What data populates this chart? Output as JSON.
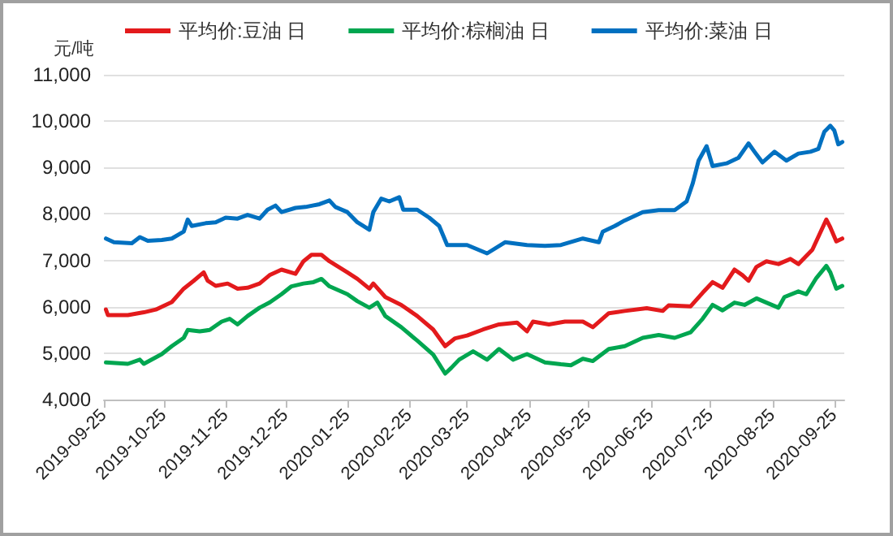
{
  "chart_data": {
    "type": "line",
    "ylabel": "元/吨",
    "legend": "top",
    "grid": "y",
    "marker": "none",
    "line_style": "solid",
    "xlim": [
      "2019-09-25",
      "2020-09-30"
    ],
    "xticks": [
      "2019-09-25",
      "2019-10-25",
      "2019-11-25",
      "2019-12-25",
      "2020-01-25",
      "2020-02-25",
      "2020-03-25",
      "2020-04-25",
      "2020-05-25",
      "2020-06-25",
      "2020-07-25",
      "2020-08-25",
      "2020-09-25"
    ],
    "ylim": [
      4000,
      11000
    ],
    "yticks": [
      {
        "value": 4000,
        "label": "4,000"
      },
      {
        "value": 5000,
        "label": "5,000"
      },
      {
        "value": 6000,
        "label": "6,000"
      },
      {
        "value": 7000,
        "label": "7,000"
      },
      {
        "value": 8000,
        "label": "8,000"
      },
      {
        "value": 9000,
        "label": "9,000"
      },
      {
        "value": 10000,
        "label": "10,000"
      },
      {
        "value": 11000,
        "label": "11,000"
      }
    ],
    "series": [
      {
        "name": "平均价:豆油 日",
        "color": "#e31a1c",
        "x": [
          "2019-09-26",
          "2019-09-27",
          "2019-10-07",
          "2019-10-15",
          "2019-10-21",
          "2019-10-24",
          "2019-10-29",
          "2019-11-04",
          "2019-11-09",
          "2019-11-14",
          "2019-11-16",
          "2019-11-20",
          "2019-11-26",
          "2019-12-01",
          "2019-12-06",
          "2019-12-12",
          "2019-12-17",
          "2019-12-23",
          "2019-12-30",
          "2020-01-03",
          "2020-01-07",
          "2020-01-12",
          "2020-01-16",
          "2020-01-25",
          "2020-01-30",
          "2020-02-05",
          "2020-02-07",
          "2020-02-13",
          "2020-02-21",
          "2020-02-29",
          "2020-03-08",
          "2020-03-14",
          "2020-03-19",
          "2020-03-25",
          "2020-04-02",
          "2020-04-10",
          "2020-04-19",
          "2020-04-24",
          "2020-04-27",
          "2020-05-05",
          "2020-05-13",
          "2020-05-22",
          "2020-05-27",
          "2020-06-04",
          "2020-06-12",
          "2020-06-23",
          "2020-07-01",
          "2020-07-04",
          "2020-07-15",
          "2020-07-21",
          "2020-07-26",
          "2020-07-31",
          "2020-08-06",
          "2020-08-10",
          "2020-08-13",
          "2020-08-17",
          "2020-08-22",
          "2020-08-28",
          "2020-09-03",
          "2020-09-07",
          "2020-09-14",
          "2020-09-21",
          "2020-09-23",
          "2020-09-26",
          "2020-09-29"
        ],
        "values": [
          5940,
          5820,
          5820,
          5880,
          5940,
          6000,
          6100,
          6390,
          6560,
          6740,
          6560,
          6450,
          6500,
          6390,
          6410,
          6500,
          6680,
          6800,
          6710,
          6980,
          7120,
          7120,
          6980,
          6740,
          6600,
          6390,
          6500,
          6210,
          6040,
          5800,
          5510,
          5150,
          5320,
          5380,
          5510,
          5620,
          5660,
          5470,
          5680,
          5620,
          5680,
          5680,
          5560,
          5860,
          5910,
          5970,
          5910,
          6030,
          6010,
          6300,
          6530,
          6410,
          6800,
          6680,
          6560,
          6860,
          6980,
          6920,
          7030,
          6920,
          7230,
          7880,
          7710,
          7410,
          7470
        ]
      },
      {
        "name": "平均价:棕榈油 日",
        "color": "#00a650",
        "x": [
          "2019-09-26",
          "2019-10-07",
          "2019-10-13",
          "2019-10-15",
          "2019-10-24",
          "2019-10-29",
          "2019-11-04",
          "2019-11-06",
          "2019-11-12",
          "2019-11-17",
          "2019-11-23",
          "2019-11-27",
          "2019-12-01",
          "2019-12-06",
          "2019-12-12",
          "2019-12-17",
          "2019-12-23",
          "2019-12-28",
          "2020-01-03",
          "2020-01-08",
          "2020-01-12",
          "2020-01-16",
          "2020-01-25",
          "2020-01-30",
          "2020-02-05",
          "2020-02-09",
          "2020-02-13",
          "2020-02-21",
          "2020-02-29",
          "2020-03-08",
          "2020-03-14",
          "2020-03-17",
          "2020-03-21",
          "2020-03-28",
          "2020-04-04",
          "2020-04-10",
          "2020-04-17",
          "2020-04-24",
          "2020-05-03",
          "2020-05-11",
          "2020-05-16",
          "2020-05-22",
          "2020-05-27",
          "2020-06-04",
          "2020-06-12",
          "2020-06-21",
          "2020-06-29",
          "2020-07-07",
          "2020-07-15",
          "2020-07-21",
          "2020-07-26",
          "2020-07-31",
          "2020-08-06",
          "2020-08-11",
          "2020-08-17",
          "2020-08-22",
          "2020-08-28",
          "2020-08-31",
          "2020-09-07",
          "2020-09-11",
          "2020-09-16",
          "2020-09-21",
          "2020-09-23",
          "2020-09-26",
          "2020-09-29"
        ],
        "values": [
          4800,
          4770,
          4860,
          4770,
          4980,
          5150,
          5330,
          5500,
          5470,
          5500,
          5680,
          5740,
          5620,
          5800,
          5980,
          6090,
          6270,
          6440,
          6500,
          6530,
          6600,
          6440,
          6270,
          6120,
          5980,
          6090,
          5800,
          5560,
          5270,
          4970,
          4560,
          4680,
          4860,
          5040,
          4860,
          5090,
          4860,
          4980,
          4800,
          4760,
          4740,
          4880,
          4830,
          5090,
          5150,
          5330,
          5390,
          5330,
          5450,
          5740,
          6040,
          5920,
          6090,
          6040,
          6180,
          6090,
          5980,
          6210,
          6330,
          6270,
          6620,
          6880,
          6740,
          6390,
          6450
        ]
      },
      {
        "name": "平均价:菜油 日",
        "color": "#0070c0",
        "x": [
          "2019-09-26",
          "2019-09-30",
          "2019-10-09",
          "2019-10-13",
          "2019-10-17",
          "2019-10-24",
          "2019-10-29",
          "2019-11-04",
          "2019-11-06",
          "2019-11-08",
          "2019-11-15",
          "2019-11-20",
          "2019-11-25",
          "2019-12-01",
          "2019-12-06",
          "2019-12-12",
          "2019-12-16",
          "2019-12-20",
          "2019-12-23",
          "2019-12-30",
          "2020-01-04",
          "2020-01-11",
          "2020-01-16",
          "2020-01-19",
          "2020-01-25",
          "2020-01-30",
          "2020-02-05",
          "2020-02-07",
          "2020-02-11",
          "2020-02-15",
          "2020-02-20",
          "2020-02-22",
          "2020-02-29",
          "2020-03-06",
          "2020-03-11",
          "2020-03-15",
          "2020-03-25",
          "2020-04-04",
          "2020-04-13",
          "2020-04-24",
          "2020-05-03",
          "2020-05-11",
          "2020-05-22",
          "2020-05-30",
          "2020-06-01",
          "2020-06-07",
          "2020-06-12",
          "2020-06-21",
          "2020-06-29",
          "2020-07-07",
          "2020-07-13",
          "2020-07-16",
          "2020-07-19",
          "2020-07-23",
          "2020-07-26",
          "2020-08-02",
          "2020-08-08",
          "2020-08-13",
          "2020-08-16",
          "2020-08-20",
          "2020-08-26",
          "2020-09-01",
          "2020-09-07",
          "2020-09-13",
          "2020-09-17",
          "2020-09-20",
          "2020-09-23",
          "2020-09-25",
          "2020-09-27",
          "2020-09-29"
        ],
        "values": [
          7470,
          7390,
          7370,
          7500,
          7420,
          7440,
          7470,
          7620,
          7880,
          7740,
          7800,
          7820,
          7920,
          7900,
          7980,
          7900,
          8090,
          8180,
          8040,
          8130,
          8150,
          8210,
          8290,
          8150,
          8040,
          7820,
          7660,
          8040,
          8330,
          8270,
          8360,
          8090,
          8090,
          7920,
          7740,
          7330,
          7330,
          7150,
          7390,
          7330,
          7310,
          7330,
          7470,
          7390,
          7620,
          7740,
          7860,
          8040,
          8080,
          8080,
          8270,
          8650,
          9150,
          9460,
          9030,
          9090,
          9210,
          9520,
          9340,
          9110,
          9340,
          9150,
          9300,
          9340,
          9400,
          9770,
          9900,
          9800,
          9500,
          9550
        ]
      }
    ]
  }
}
